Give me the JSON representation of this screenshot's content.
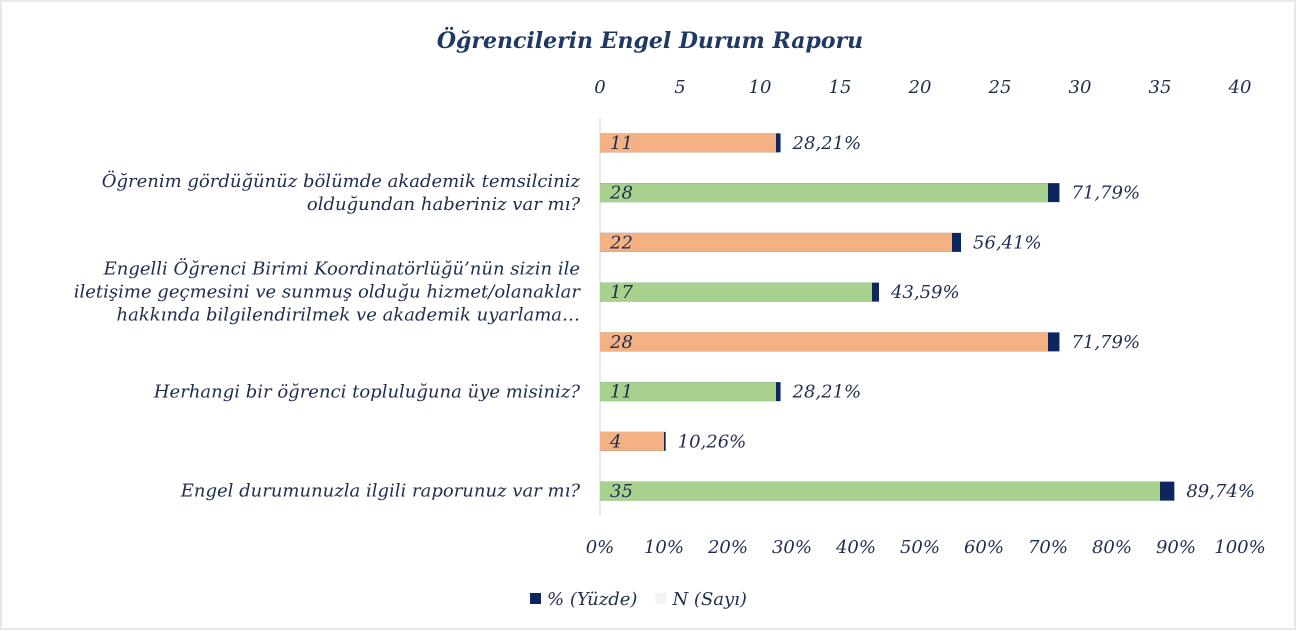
{
  "chart_data": {
    "type": "bar",
    "orientation": "horizontal",
    "title": "Öğrencilerin Engel Durum Raporu",
    "categories": [
      null,
      "Öğrenim gördüğünüz bölümde akademik temsilciniz\nolduğundan haberiniz var mı?",
      null,
      "Engelli Öğrenci Birimi Koordinatörlüğü’nün sizin ile\niletişime geçmesini ve sunmuş olduğu hizmet/olanaklar\nhakkında bilgilendirilmek ve akademik uyarlama…",
      null,
      "Herhangi bir öğrenci topluluğuna üye misiniz?",
      null,
      "Engel durumunuzla ilgili raporunuz var mı?"
    ],
    "series": [
      {
        "name": "% (Yüzde)",
        "color": "#0d2660",
        "axis": "x2",
        "values": [
          28.21,
          71.79,
          56.41,
          43.59,
          71.79,
          28.21,
          10.26,
          89.74
        ],
        "value_labels": [
          "28,21%",
          "71,79%",
          "56,41%",
          "43,59%",
          "71,79%",
          "28,21%",
          "10,26%",
          "89,74%"
        ]
      },
      {
        "name": "N (Sayı)",
        "color": "#f2f2f2",
        "bar_colors": [
          "#f4b183",
          "#a9d18e",
          "#f4b183",
          "#a9d18e",
          "#f4b183",
          "#a9d18e",
          "#f4b183",
          "#a9d18e"
        ],
        "values": [
          11,
          28,
          22,
          17,
          28,
          11,
          4,
          35
        ]
      }
    ],
    "xlim": [
      0,
      40
    ],
    "xticks": [
      0,
      5,
      10,
      15,
      20,
      25,
      30,
      35,
      40
    ],
    "x2lim": [
      0,
      100
    ],
    "x2ticks": [
      {
        "value": 0,
        "label": "0%"
      },
      {
        "value": 10,
        "label": "10%"
      },
      {
        "value": 20,
        "label": "20%"
      },
      {
        "value": 30,
        "label": "30%"
      },
      {
        "value": 40,
        "label": "40%"
      },
      {
        "value": 50,
        "label": "50%"
      },
      {
        "value": 60,
        "label": "60%"
      },
      {
        "value": 70,
        "label": "70%"
      },
      {
        "value": 80,
        "label": "80%"
      },
      {
        "value": 90,
        "label": "90%"
      },
      {
        "value": 100,
        "label": "100%"
      }
    ],
    "legend": "bottom"
  }
}
